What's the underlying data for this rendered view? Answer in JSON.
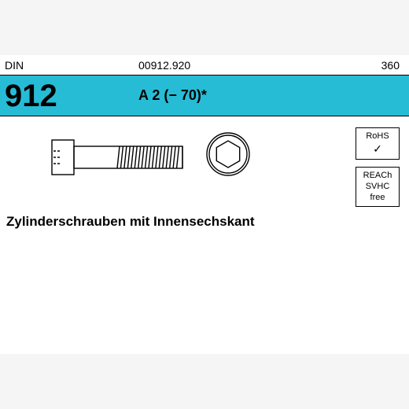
{
  "header": {
    "din_label": "DIN",
    "din_number": "912",
    "code": "00912.920",
    "qty": "360",
    "material": "A 2 (− 70)*"
  },
  "description": "Zylinderschrauben mit Innensechskant",
  "badges": {
    "rohs": {
      "line1": "RoHS",
      "check": "✓"
    },
    "reach": {
      "line1": "REACh",
      "line2": "SVHC",
      "line3": "free"
    }
  },
  "style": {
    "cyan": "#27bcd6",
    "stroke": "#000000",
    "bg": "#ffffff",
    "screw": {
      "head_w": 28,
      "head_h": 44,
      "shaft_w": 138,
      "shaft_h": 28,
      "thread_start": 58,
      "thread_count": 18
    },
    "hex": {
      "outer_r": 27,
      "inner_r": 17
    }
  }
}
